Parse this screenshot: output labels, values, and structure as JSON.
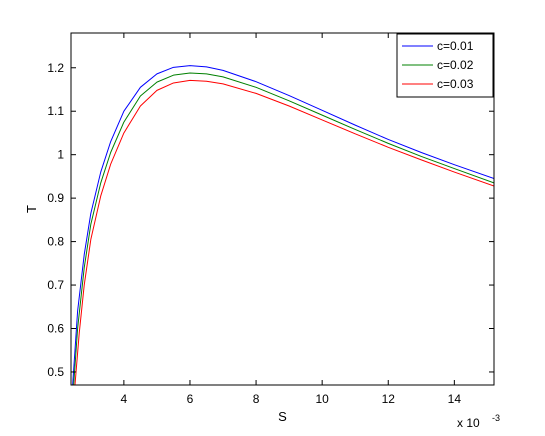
{
  "chart_data": {
    "type": "line",
    "title": "",
    "xlabel": "S",
    "ylabel": "T",
    "x_exponent_base": "x 10",
    "x_exponent_power": "-3",
    "xlim": [
      2.4,
      15.2
    ],
    "ylim": [
      0.47,
      1.28
    ],
    "xticks": [
      4,
      6,
      8,
      10,
      12,
      14
    ],
    "yticks": [
      0.5,
      0.6,
      0.7,
      0.8,
      0.9,
      1.0,
      1.1,
      1.2
    ],
    "ytick_labels": [
      "0.5",
      "0.6",
      "0.7",
      "0.8",
      "0.9",
      "1",
      "1.1",
      "1.2"
    ],
    "grid": false,
    "legend_position": "top-right",
    "series": [
      {
        "name": "c=0.01",
        "color": "#0000ff",
        "x": [
          2.45,
          2.6,
          2.8,
          3.0,
          3.3,
          3.6,
          4.0,
          4.5,
          5.0,
          5.5,
          6.0,
          6.5,
          7.0,
          8.0,
          9.0,
          10.0,
          11.0,
          12.0,
          13.0,
          14.0,
          15.2
        ],
        "y": [
          0.47,
          0.64,
          0.77,
          0.865,
          0.96,
          1.03,
          1.1,
          1.155,
          1.186,
          1.201,
          1.205,
          1.202,
          1.194,
          1.168,
          1.136,
          1.102,
          1.068,
          1.035,
          1.005,
          0.977,
          0.945
        ]
      },
      {
        "name": "c=0.02",
        "color": "#008000",
        "x": [
          2.48,
          2.6,
          2.8,
          3.0,
          3.3,
          3.6,
          4.0,
          4.5,
          5.0,
          5.5,
          6.0,
          6.5,
          7.0,
          8.0,
          9.0,
          10.0,
          11.0,
          12.0,
          13.0,
          14.0,
          15.2
        ],
        "y": [
          0.47,
          0.6,
          0.74,
          0.84,
          0.935,
          1.005,
          1.075,
          1.135,
          1.167,
          1.183,
          1.188,
          1.186,
          1.179,
          1.155,
          1.124,
          1.091,
          1.058,
          1.026,
          0.996,
          0.968,
          0.935
        ]
      },
      {
        "name": "c=0.03",
        "color": "#ff0000",
        "x": [
          2.52,
          2.65,
          2.8,
          3.0,
          3.3,
          3.6,
          4.0,
          4.5,
          5.0,
          5.5,
          6.0,
          6.5,
          7.0,
          8.0,
          9.0,
          10.0,
          11.0,
          12.0,
          13.0,
          14.0,
          15.2
        ],
        "y": [
          0.47,
          0.59,
          0.7,
          0.805,
          0.905,
          0.978,
          1.05,
          1.112,
          1.148,
          1.165,
          1.171,
          1.169,
          1.163,
          1.141,
          1.112,
          1.08,
          1.048,
          1.017,
          0.988,
          0.96,
          0.928
        ]
      }
    ]
  }
}
